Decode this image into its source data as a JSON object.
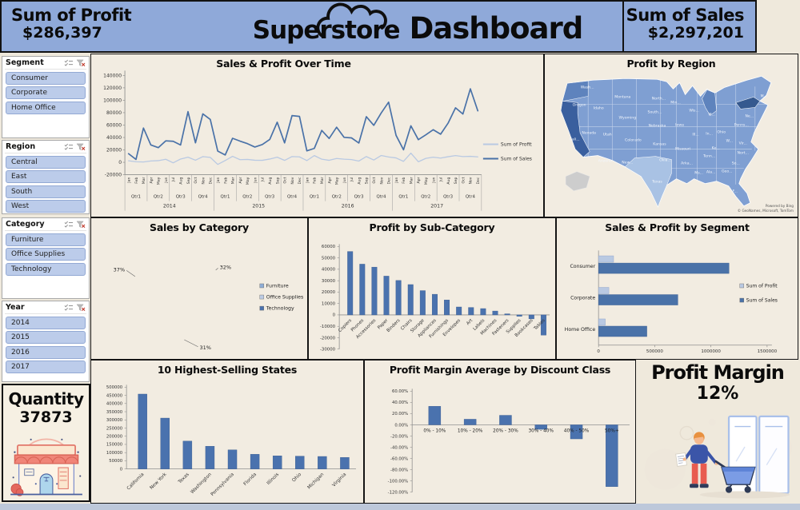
{
  "header": {
    "profit_label": "Sum of Profit",
    "profit_value": "$286,397",
    "title_super": "Superstore",
    "title_dash": "Dashboard",
    "sales_label": "Sum of Sales",
    "sales_value": "$2,297,201"
  },
  "slicers": [
    {
      "title": "Segment",
      "items": [
        "Consumer",
        "Corporate",
        "Home Office"
      ]
    },
    {
      "title": "Region",
      "items": [
        "Central",
        "East",
        "South",
        "West"
      ]
    },
    {
      "title": "Category",
      "items": [
        "Furniture",
        "Office Supplies",
        "Technology"
      ]
    },
    {
      "title": "Year",
      "items": [
        "2014",
        "2015",
        "2016",
        "2017"
      ]
    }
  ],
  "quantity": {
    "label": "Quantity",
    "value": "37873"
  },
  "profit_margin": {
    "label": "Profit Margin",
    "value": "12%"
  },
  "map": {
    "title": "Profit by Region",
    "attribution_line1": "Powered by Bing",
    "attribution_line2": "© GeoNames, Microsoft, TomTom",
    "state_labels": [
      "Wash...",
      "Montana",
      "North...",
      "Min...",
      "Wis...",
      "M...",
      "Oregon",
      "Idaho",
      "Wyoming",
      "South...",
      "Nebraska",
      "Iowa",
      "Nevada",
      "Utah",
      "Colorado",
      "Kansas",
      "Missouri",
      "Ohio",
      "Ill...",
      "In...",
      "Ke...",
      "W...",
      "Vir...",
      "Penns...",
      "Ne...",
      "M...",
      "Nort...",
      "Tenn...",
      "Okla...",
      "Arka...",
      "Ms...",
      "Ala...",
      "Geo...",
      "So...",
      "Texas",
      "Arizona",
      "New...",
      "Cali...",
      "F..."
    ]
  },
  "colors": {
    "header_blue": "#8fa9d9",
    "panel_cream": "#f2ece1",
    "bar_dark": "#4a72ae",
    "bar_light": "#b9c9e2",
    "map_base": "#7f9fd2",
    "map_dark": "#3a5f9e"
  },
  "chart_data": [
    {
      "id": "sales-profit-over-time",
      "type": "line",
      "title": "Sales & Profit Over Time",
      "month_names": [
        "Jan",
        "Feb",
        "Mar",
        "Apr",
        "May",
        "Jun",
        "Jul",
        "Aug",
        "Sep",
        "Oct",
        "Nov",
        "Dec"
      ],
      "quarter_names": [
        "Qtr1",
        "Qtr2",
        "Qtr3",
        "Qtr4"
      ],
      "years": [
        "2014",
        "2015",
        "2016",
        "2017"
      ],
      "ylim": [
        -20000,
        140000
      ],
      "ytick": 20000,
      "legend_position": "right",
      "series": [
        {
          "name": "Sum of Profit",
          "color": "#b9c9e2",
          "values": [
            2500,
            900,
            500,
            2200,
            2700,
            4900,
            -800,
            5300,
            8300,
            3400,
            9200,
            8000,
            -3300,
            2800,
            9700,
            4200,
            4700,
            3300,
            3200,
            5300,
            8300,
            3100,
            9300,
            8800,
            2800,
            10800,
            5000,
            3200,
            6200,
            5000,
            4400,
            2100,
            9300,
            3800,
            11000,
            8700,
            7100,
            1600,
            14800,
            900,
            6300,
            8200,
            6900,
            9000,
            10900,
            9300,
            9700,
            8800
          ]
        },
        {
          "name": "Sum of Sales",
          "color": "#4a72a8",
          "values": [
            14000,
            4600,
            55200,
            28000,
            23600,
            34600,
            33900,
            27900,
            81700,
            31500,
            78000,
            69000,
            18100,
            11900,
            38700,
            34200,
            30100,
            24700,
            28700,
            36900,
            64600,
            31400,
            75250,
            74000,
            18500,
            22500,
            51400,
            38500,
            56500,
            40300,
            39300,
            31100,
            73500,
            59600,
            79400,
            96900,
            43500,
            20300,
            58900,
            36500,
            44300,
            52500,
            45300,
            63100,
            87900,
            77800,
            118400,
            83000
          ]
        }
      ]
    },
    {
      "id": "sales-by-category",
      "type": "pie",
      "title": "Sales by Category",
      "categories": [
        "Furniture",
        "Office Supplies",
        "Technology"
      ],
      "values": [
        32,
        31,
        37
      ],
      "labels": [
        "32%",
        "31%",
        "37%"
      ],
      "colors": [
        "#8fadd6",
        "#bccbe4",
        "#4a71ae"
      ],
      "donut": true,
      "legend_position": "right"
    },
    {
      "id": "profit-by-subcategory",
      "type": "bar",
      "title": "Profit by Sub-Category",
      "categories": [
        "Copiers",
        "Phones",
        "Accessories",
        "Paper",
        "Binders",
        "Chairs",
        "Storage",
        "Appliances",
        "Furnishings",
        "Envelopes",
        "Art",
        "Labels",
        "Machines",
        "Fasteners",
        "Supplies",
        "Bookcases",
        "Tables"
      ],
      "values": [
        55600,
        44500,
        41900,
        34000,
        30200,
        26600,
        21300,
        18100,
        13100,
        6960,
        6530,
        5550,
        3400,
        950,
        -1190,
        -3470,
        -17700
      ],
      "ylim": [
        -30000,
        60000
      ],
      "ytick": 10000,
      "bar_color": "#4a72ae"
    },
    {
      "id": "sales-profit-by-segment",
      "type": "hbar",
      "title": "Sales & Profit by Segment",
      "categories": [
        "Consumer",
        "Corporate",
        "Home Office"
      ],
      "xlim": [
        0,
        1500000
      ],
      "xticks": [
        0,
        500000,
        1000000,
        1500000
      ],
      "legend_position": "right",
      "series": [
        {
          "name": "Sum of Profit",
          "color": "#b9c9e2",
          "values": [
            134000,
            92000,
            60000
          ]
        },
        {
          "name": "Sum of Sales",
          "color": "#4a72a8",
          "values": [
            1161000,
            706000,
            430000
          ]
        }
      ]
    },
    {
      "id": "top-states",
      "type": "bar",
      "title": "10 Highest-Selling States",
      "categories": [
        "California",
        "New York",
        "Texas",
        "Washington",
        "Pennsylvania",
        "Florida",
        "Illinois",
        "Ohio",
        "Michigan",
        "Virginia"
      ],
      "values": [
        457700,
        310900,
        170200,
        138600,
        116500,
        89500,
        80200,
        78300,
        76300,
        70600
      ],
      "ylim": [
        0,
        500000
      ],
      "ytick": 50000,
      "bar_color": "#4a72ae"
    },
    {
      "id": "profit-margin-by-discount",
      "type": "bar",
      "title": "Profit Margin Average by Discount Class",
      "categories": [
        "0% - 10%",
        "10% - 20%",
        "20% - 30%",
        "30% - 40%",
        "40% - 50%",
        "50%+"
      ],
      "values": [
        33,
        10,
        17,
        -8,
        -25,
        -110
      ],
      "ylim": [
        -120,
        60
      ],
      "ytick": 20,
      "format": "percent",
      "bar_color": "#4a72ae"
    }
  ]
}
